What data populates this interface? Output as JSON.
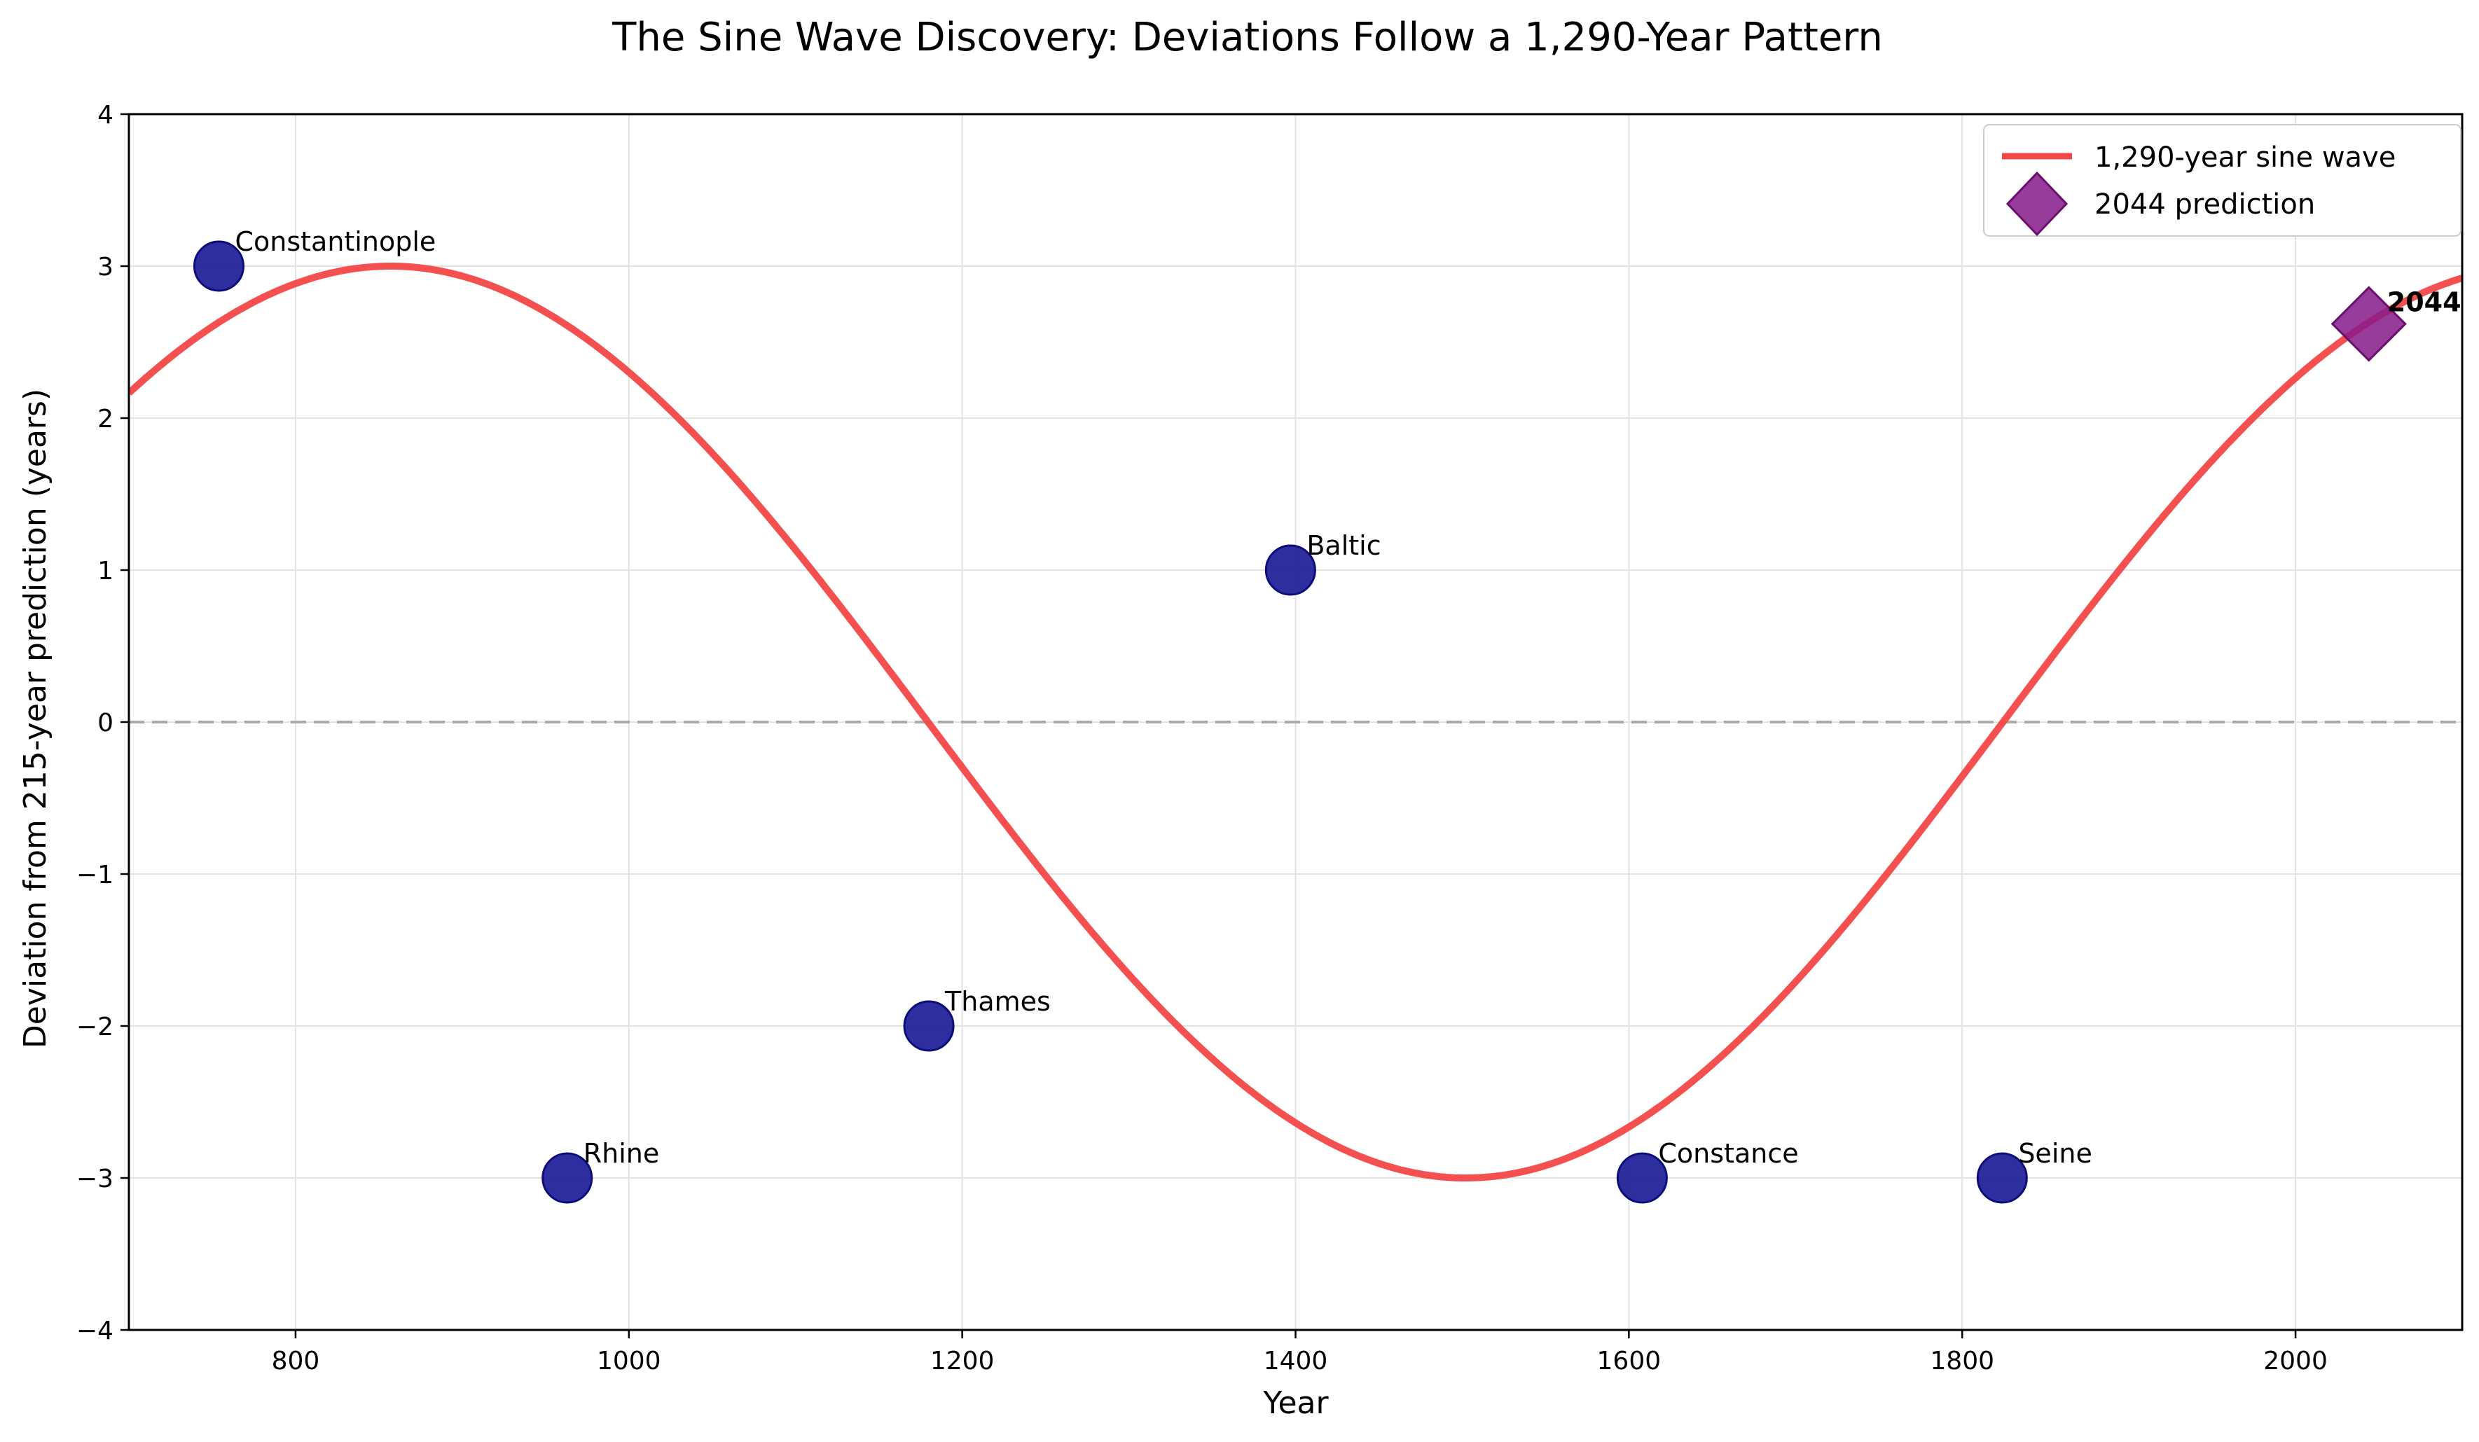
{
  "chart_data": {
    "type": "scatter",
    "title": "The Sine Wave Discovery: Deviations Follow a 1,290-Year Pattern",
    "xlabel": "Year",
    "ylabel": "Deviation from 215-year prediction (years)",
    "xlim": [
      700,
      2100
    ],
    "ylim": [
      -4,
      4
    ],
    "xticks": [
      800,
      1000,
      1200,
      1400,
      1600,
      1800,
      2000
    ],
    "yticks": [
      -4,
      -3,
      -2,
      -1,
      0,
      1,
      2,
      3,
      4
    ],
    "grid": true,
    "reference_line_y": 0,
    "points": [
      {
        "label": "Constantinople",
        "x": 754,
        "y": 3
      },
      {
        "label": "Rhine",
        "x": 963,
        "y": -3
      },
      {
        "label": "Thames",
        "x": 1180,
        "y": -2
      },
      {
        "label": "Baltic",
        "x": 1397,
        "y": 1
      },
      {
        "label": "Constance",
        "x": 1608,
        "y": -3
      },
      {
        "label": "Seine",
        "x": 1824,
        "y": -3
      }
    ],
    "sine_wave": {
      "name": "1,290-year sine wave",
      "period": 1290,
      "amplitude": 3,
      "peak_x": 857
    },
    "prediction": {
      "name": "2044 prediction",
      "label": "2044",
      "x": 2044,
      "y": 2.62
    },
    "legend_position": "top-right",
    "colors": {
      "points": "#1c1c96",
      "point_edge": "#0d0d7a",
      "sine": "#f44747",
      "prediction": "#861a8a",
      "reference_line": "#aaaaaa",
      "grid": "#e3e3e3"
    }
  }
}
